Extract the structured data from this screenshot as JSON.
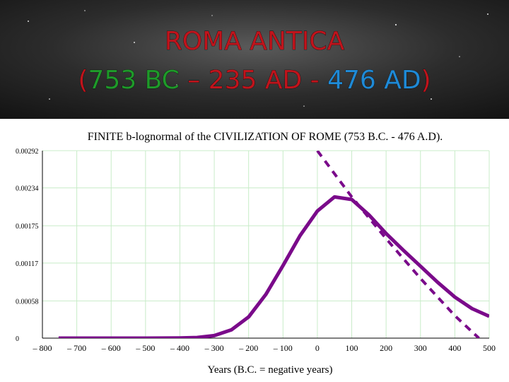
{
  "slide": {
    "title": "ROMA  ANTICA",
    "subtitle_parts": [
      {
        "text": "(",
        "color": "#c0141c"
      },
      {
        "text": "753 BC",
        "color": "#1f9a2a"
      },
      {
        "text": " – 235 AD - ",
        "color": "#c0141c"
      },
      {
        "text": "476 AD",
        "color": "#1f8ad6"
      },
      {
        "text": ")",
        "color": "#c0141c"
      }
    ]
  },
  "chart_data": {
    "type": "line",
    "title": "FINITE b-lognormal of the CIVILIZATION OF ROME (753 B.C. - 476 A.D).",
    "x_label": "Years (B.C. = negative years)",
    "xlim": [
      -800,
      500
    ],
    "ylim": [
      0,
      0.00292
    ],
    "xticks": [
      {
        "value": -800,
        "label": "– 800"
      },
      {
        "value": -700,
        "label": "– 700"
      },
      {
        "value": -600,
        "label": "– 600"
      },
      {
        "value": -500,
        "label": "– 500"
      },
      {
        "value": -400,
        "label": "– 400"
      },
      {
        "value": -300,
        "label": "– 300"
      },
      {
        "value": -200,
        "label": "– 200"
      },
      {
        "value": -100,
        "label": "– 100"
      },
      0,
      100,
      200,
      300,
      400,
      500
    ],
    "yticks": [
      0,
      0.00058,
      0.00117,
      0.00175,
      0.00234,
      0.00292
    ],
    "grid": true,
    "grid_color": "#c8ecc8",
    "series": [
      {
        "color": "#7a0a8a",
        "dashed": false,
        "x": [
          -753,
          -500,
          -400,
          -350,
          -300,
          -250,
          -200,
          -150,
          -100,
          -50,
          0,
          50,
          100,
          150,
          200,
          250,
          300,
          350,
          400,
          450,
          500
        ],
        "values": [
          0,
          0,
          3e-06,
          1e-05,
          4e-05,
          0.00013,
          0.00033,
          0.00068,
          0.00113,
          0.0016,
          0.00198,
          0.0022,
          0.00216,
          0.00192,
          0.00163,
          0.00137,
          0.00112,
          0.00087,
          0.00064,
          0.00046,
          0.00034
        ]
      },
      {
        "color": "#7a0a8a",
        "dashed": true,
        "x": [
          0,
          100,
          200,
          300,
          400,
          470
        ],
        "values": [
          0.00292,
          0.0022,
          0.00155,
          0.00093,
          0.00035,
          0
        ]
      }
    ]
  }
}
